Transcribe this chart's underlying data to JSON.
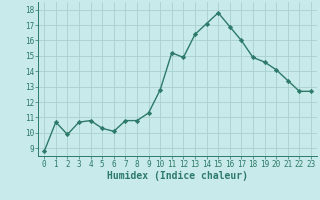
{
  "title": "",
  "xlabel": "Humidex (Indice chaleur)",
  "ylabel": "",
  "x": [
    0,
    1,
    2,
    3,
    4,
    5,
    6,
    7,
    8,
    9,
    10,
    11,
    12,
    13,
    14,
    15,
    16,
    17,
    18,
    19,
    20,
    21,
    22,
    23
  ],
  "y": [
    8.8,
    10.7,
    9.9,
    10.7,
    10.8,
    10.3,
    10.1,
    10.8,
    10.8,
    11.3,
    12.8,
    15.2,
    14.9,
    16.4,
    17.1,
    17.8,
    16.9,
    16.0,
    14.9,
    14.6,
    14.1,
    13.4,
    12.7,
    12.7
  ],
  "line_color": "#2d7a6a",
  "marker": "D",
  "markersize": 2.2,
  "linewidth": 1.0,
  "bg_color": "#c8eaea",
  "grid_color": "#aacfcf",
  "xlim": [
    -0.5,
    23.5
  ],
  "ylim": [
    8.5,
    18.5
  ],
  "yticks": [
    9,
    10,
    11,
    12,
    13,
    14,
    15,
    16,
    17,
    18
  ],
  "xticks": [
    0,
    1,
    2,
    3,
    4,
    5,
    6,
    7,
    8,
    9,
    10,
    11,
    12,
    13,
    14,
    15,
    16,
    17,
    18,
    19,
    20,
    21,
    22,
    23
  ],
  "tick_fontsize": 5.5,
  "xlabel_fontsize": 7.0,
  "axis_color": "#2d7a6a",
  "font_family": "monospace"
}
